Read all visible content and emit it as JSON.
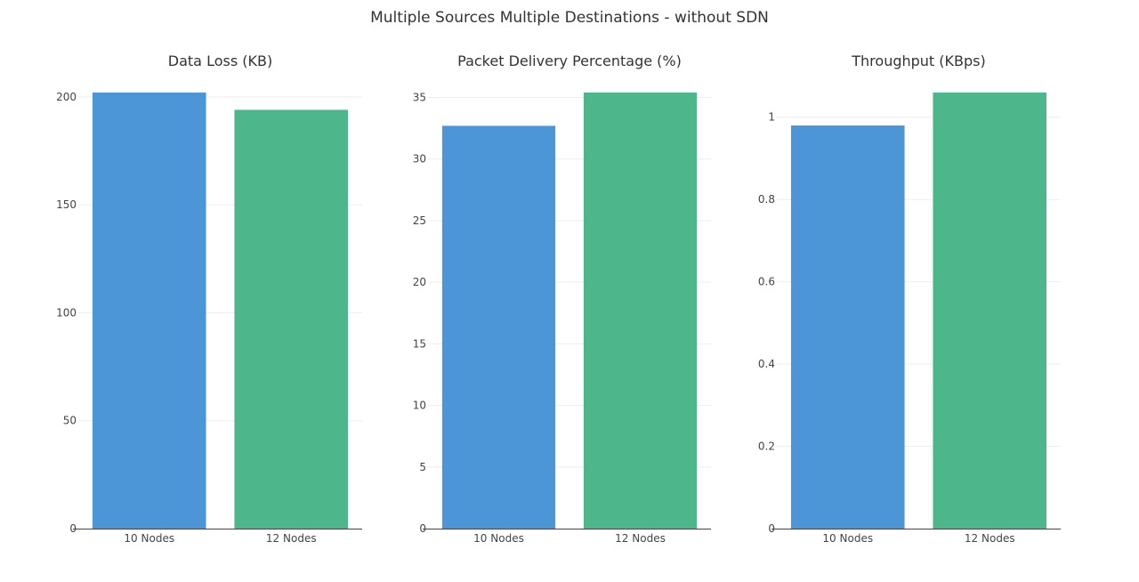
{
  "title": "Multiple Sources Multiple Destinations - without SDN",
  "chart_data": [
    {
      "type": "bar",
      "title": "Data Loss (KB)",
      "categories": [
        "10 Nodes",
        "12 Nodes"
      ],
      "values": [
        202,
        194
      ],
      "colors": [
        "#4c96d7",
        "#4db68a"
      ],
      "ylim": [
        0,
        202
      ],
      "yticks": [
        0,
        50,
        100,
        150,
        200
      ],
      "ytick_labels": [
        "0",
        "50",
        "100",
        "150",
        "200"
      ],
      "grid": true
    },
    {
      "type": "bar",
      "title": "Packet Delivery Percentage (%)",
      "categories": [
        "10 Nodes",
        "12 Nodes"
      ],
      "values": [
        32.7,
        35.4
      ],
      "colors": [
        "#4c96d7",
        "#4db68a"
      ],
      "ylim": [
        0,
        35.4
      ],
      "yticks": [
        0,
        5,
        10,
        15,
        20,
        25,
        30,
        35
      ],
      "ytick_labels": [
        "0",
        "5",
        "10",
        "15",
        "20",
        "25",
        "30",
        "35"
      ],
      "grid": true
    },
    {
      "type": "bar",
      "title": "Throughput (KBps)",
      "categories": [
        "10 Nodes",
        "12 Nodes"
      ],
      "values": [
        0.98,
        1.06
      ],
      "colors": [
        "#4c96d7",
        "#4db68a"
      ],
      "ylim": [
        0,
        1.06
      ],
      "yticks": [
        0,
        0.2,
        0.4,
        0.6,
        0.8,
        1
      ],
      "ytick_labels": [
        "0",
        "0.2",
        "0.4",
        "0.6",
        "0.8",
        "1"
      ],
      "grid": true
    }
  ]
}
